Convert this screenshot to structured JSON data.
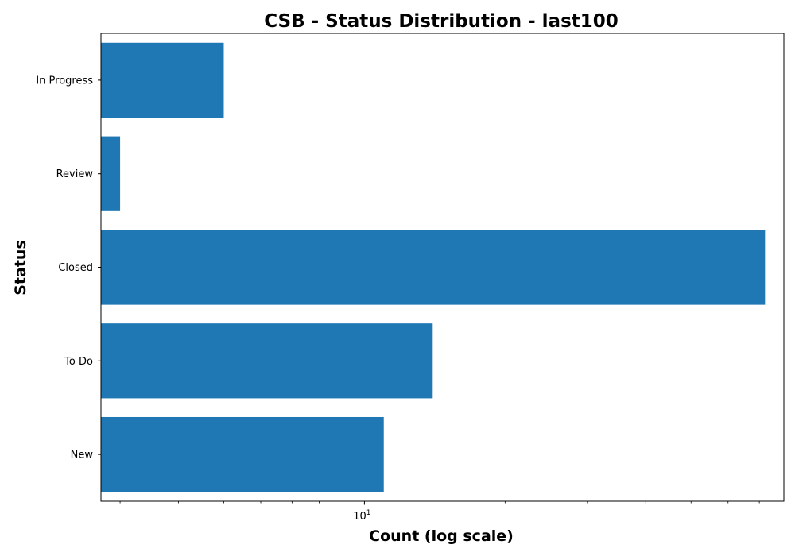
{
  "chart_data": {
    "type": "bar",
    "orientation": "horizontal",
    "title": "CSB - Status Distribution - last100",
    "xlabel": "Count (log scale)",
    "ylabel": "Status",
    "x_scale": "log",
    "xlim": [
      2.73,
      79
    ],
    "x_major_ticks": [
      {
        "value": 10,
        "base": "10",
        "exponent": "1"
      }
    ],
    "x_minor_ticks": [
      3,
      4,
      5,
      6,
      7,
      8,
      9,
      20,
      30,
      40,
      50,
      60,
      70
    ],
    "categories": [
      "New",
      "To Do",
      "Closed",
      "Review",
      "In Progress"
    ],
    "values": [
      11,
      14,
      72,
      3,
      5
    ],
    "bar_color": "#1f77b4",
    "grid": false,
    "legend": "none"
  }
}
